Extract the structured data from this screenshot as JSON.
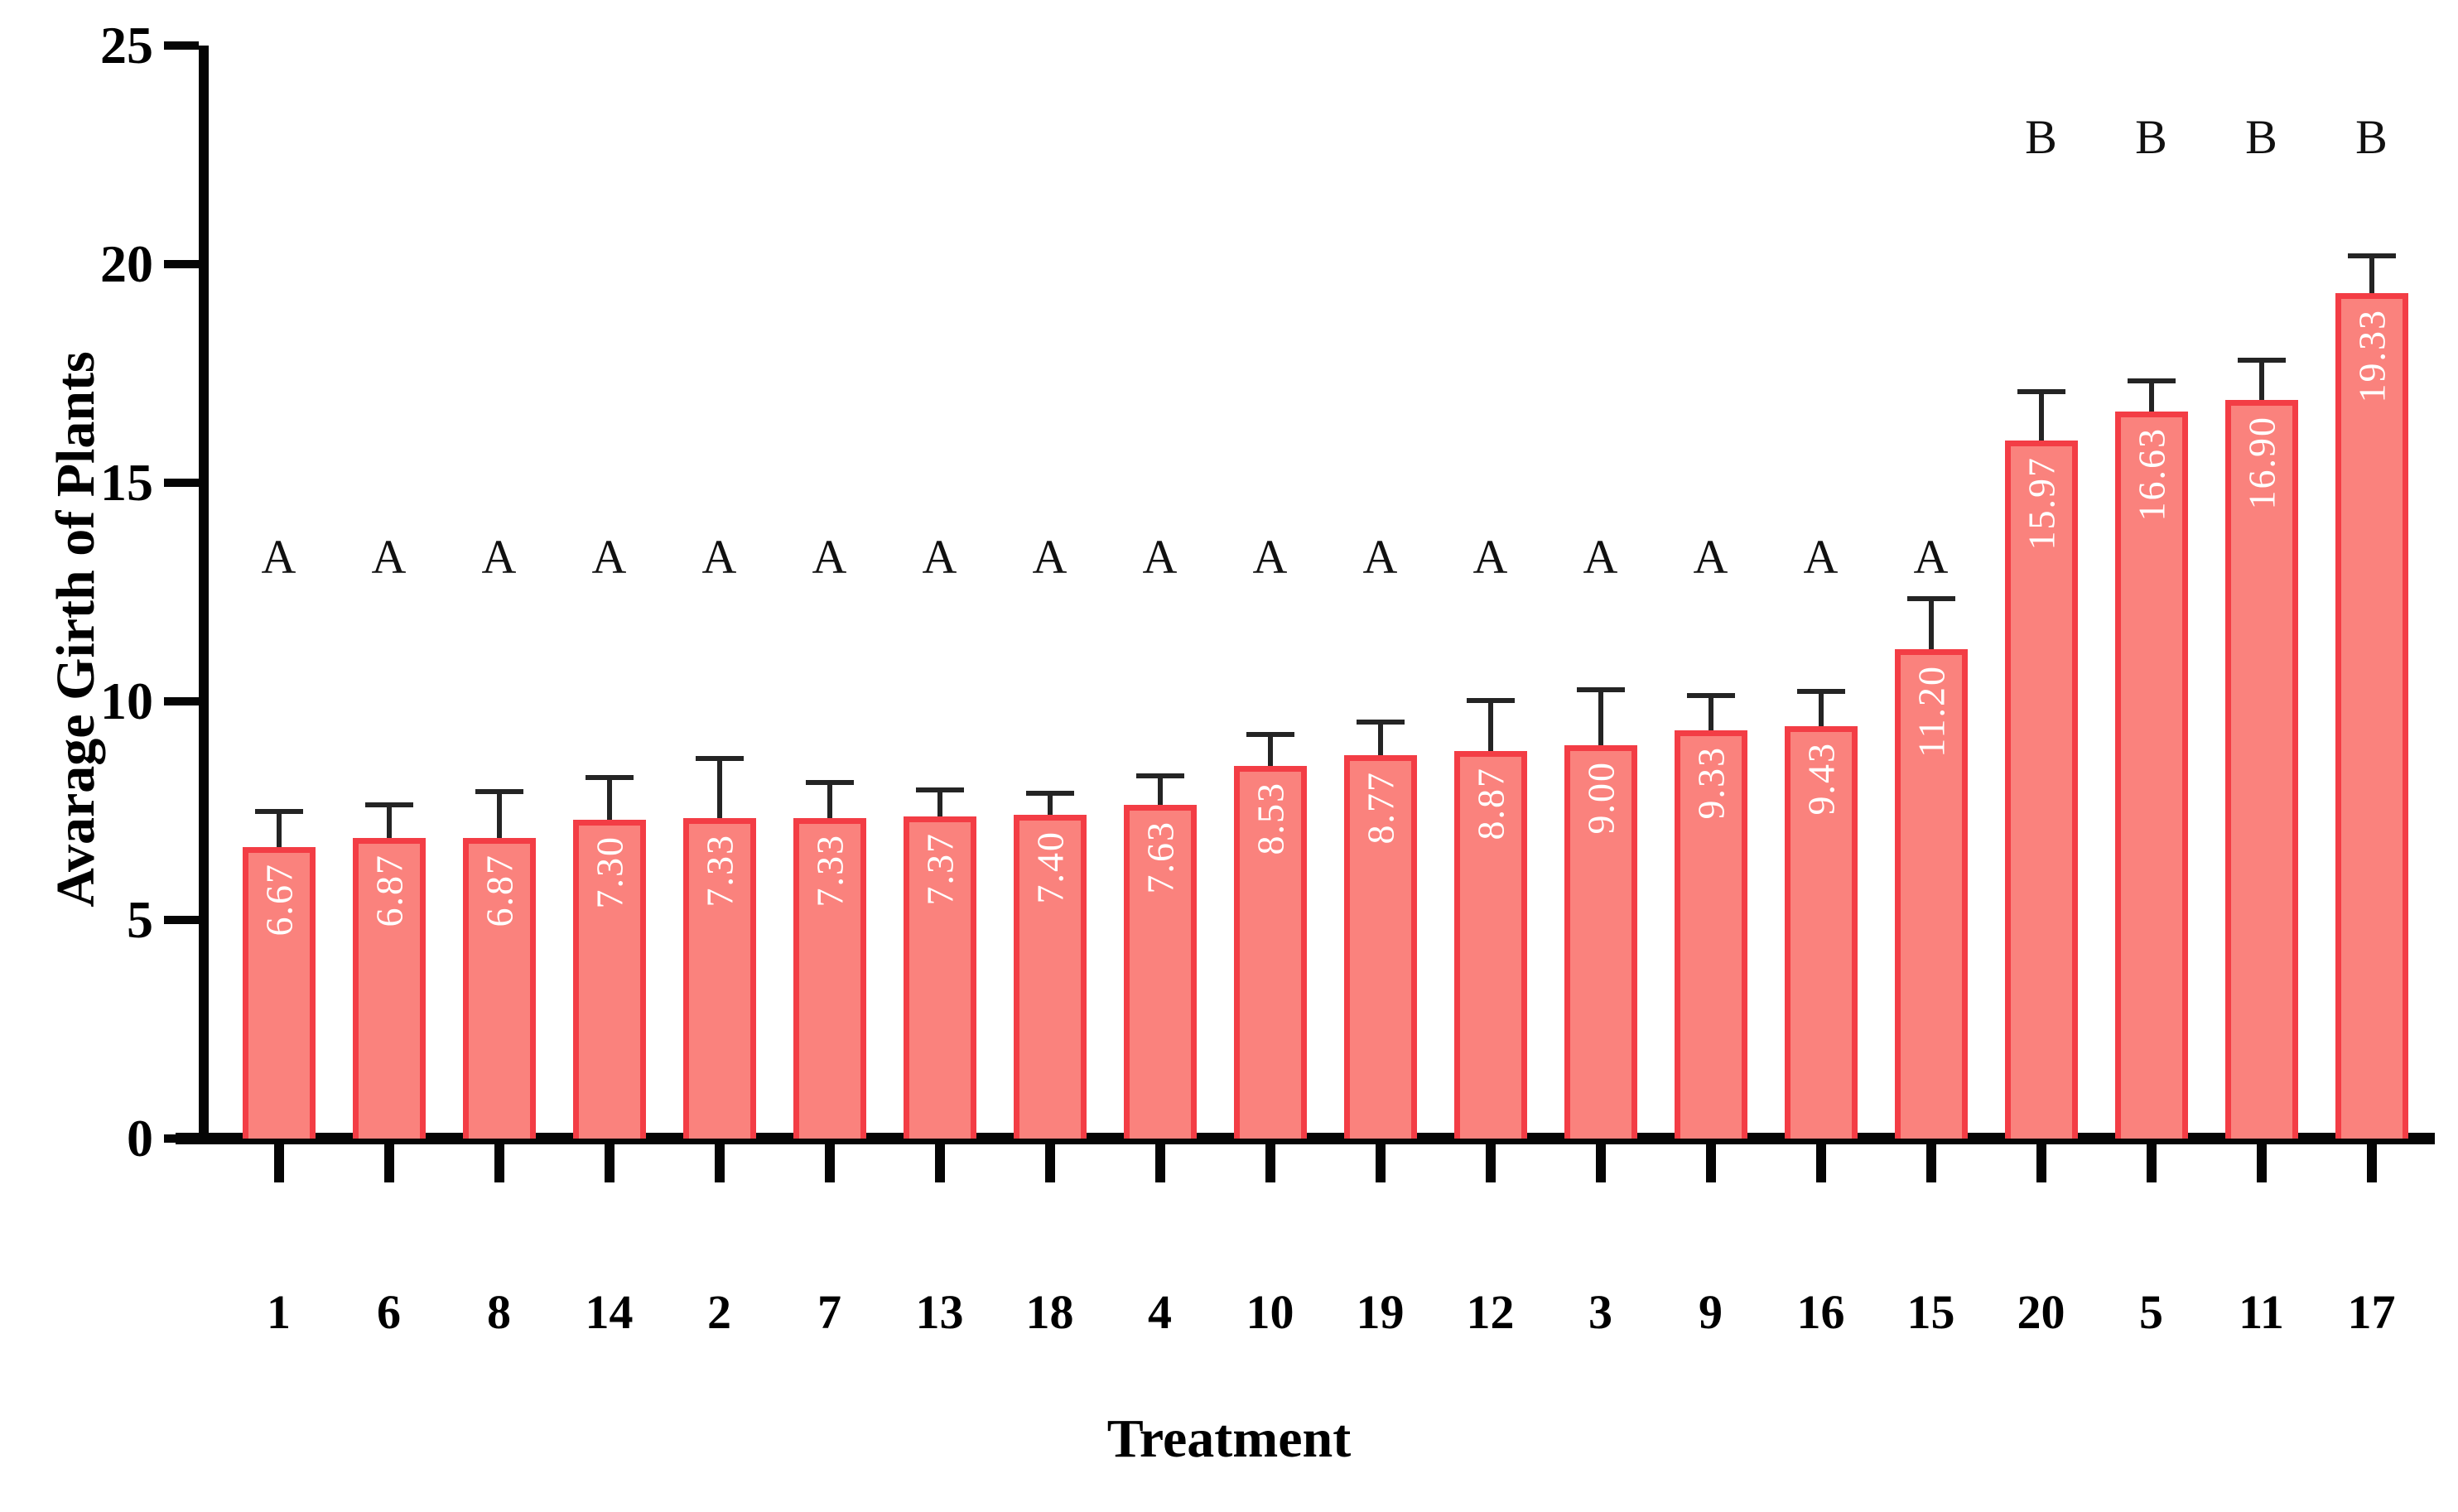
{
  "figure": {
    "background": "#ffffff"
  },
  "chart_data": {
    "type": "bar",
    "title": "",
    "xlabel": "Treatment",
    "ylabel": "Avarage Girth of Plants",
    "ylim": [
      0,
      25
    ],
    "ytick_labels": [
      "0",
      "5",
      "10",
      "15",
      "20",
      "25"
    ],
    "ytick_values": [
      0,
      5,
      10,
      15,
      20,
      25
    ],
    "grid": false,
    "legend": null,
    "categories": [
      "1",
      "6",
      "8",
      "14",
      "2",
      "7",
      "13",
      "18",
      "4",
      "10",
      "19",
      "12",
      "3",
      "9",
      "16",
      "15",
      "20",
      "5",
      "11",
      "17"
    ],
    "values": [
      6.67,
      6.87,
      6.87,
      7.3,
      7.33,
      7.33,
      7.37,
      7.4,
      7.63,
      8.53,
      8.77,
      8.87,
      9.0,
      9.33,
      9.43,
      11.2,
      15.97,
      16.63,
      16.9,
      19.33
    ],
    "value_labels": [
      "6.67",
      "6.87",
      "6.87",
      "7.30",
      "7.33",
      "7.33",
      "7.37",
      "7.40",
      "7.63",
      "8.53",
      "8.77",
      "8.87",
      "9.00",
      "9.33",
      "9.43",
      "11.20",
      "15.97",
      "16.63",
      "16.90",
      "19.33"
    ],
    "errors_upper": [
      0.75,
      0.7,
      1.0,
      0.9,
      1.3,
      0.75,
      0.55,
      0.45,
      0.6,
      0.65,
      0.7,
      1.1,
      1.2,
      0.75,
      0.75,
      1.1,
      1.05,
      0.65,
      0.85,
      0.8
    ],
    "sig_letters": [
      "A",
      "A",
      "A",
      "A",
      "A",
      "A",
      "A",
      "A",
      "A",
      "A",
      "A",
      "A",
      "A",
      "A",
      "A",
      "A",
      "B",
      "B",
      "B",
      "B"
    ],
    "letter_rows": {
      "A": 13.3,
      "B": 22.9
    },
    "colors": {
      "bar_fill": "#fa827d",
      "bar_border": "#f33d45",
      "error_bar": "#242424",
      "axis": "#050505",
      "value_label_text": "#ffffff"
    }
  }
}
